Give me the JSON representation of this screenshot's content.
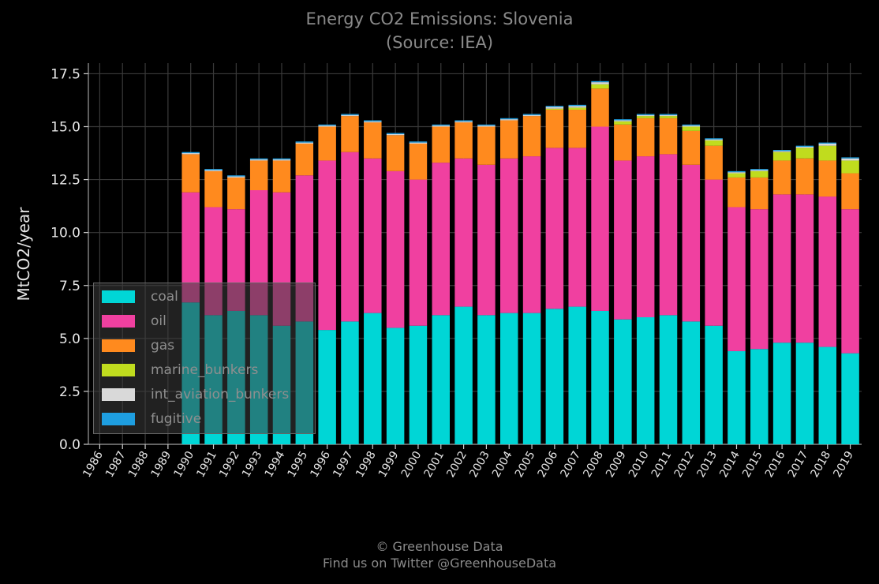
{
  "title_line1": "Energy CO2 Emissions: Slovenia",
  "title_line2": "(Source: IEA)",
  "footer_line1": "© Greenhouse Data",
  "footer_line2": "Find us on Twitter @GreenhouseData",
  "colors": {
    "background": "#000000",
    "grid": "#3a3a3a",
    "coal": "#00d6d6",
    "oil": "#f040a0",
    "gas": "#ff8a1e",
    "marine_bunkers": "#c0dc1e",
    "int_aviation_bunkers": "#d9d9d9",
    "fugitive": "#1e9ee0"
  },
  "chart_data": {
    "type": "bar",
    "stacked": true,
    "title": "Energy CO2 Emissions: Slovenia\n(Source: IEA)",
    "xlabel": "",
    "ylabel": "MtCO2/year",
    "ylim": [
      0,
      18
    ],
    "yticks": [
      "0.0",
      "2.5",
      "5.0",
      "7.5",
      "10.0",
      "12.5",
      "15.0",
      "17.5"
    ],
    "grid": true,
    "legend_position": "lower-left",
    "categories": [
      "1986",
      "1987",
      "1988",
      "1989",
      "1990",
      "1991",
      "1992",
      "1993",
      "1994",
      "1995",
      "1996",
      "1997",
      "1998",
      "1999",
      "2000",
      "2001",
      "2002",
      "2003",
      "2004",
      "2005",
      "2006",
      "2007",
      "2008",
      "2009",
      "2010",
      "2011",
      "2012",
      "2013",
      "2014",
      "2015",
      "2016",
      "2017",
      "2018",
      "2019"
    ],
    "series": [
      {
        "name": "coal",
        "values": [
          0,
          0,
          0,
          0,
          6.7,
          6.1,
          6.3,
          6.1,
          5.6,
          5.8,
          5.4,
          5.8,
          6.2,
          5.5,
          5.6,
          6.1,
          6.5,
          6.1,
          6.2,
          6.2,
          6.4,
          6.5,
          6.3,
          5.9,
          6.0,
          6.1,
          5.8,
          5.6,
          4.4,
          4.5,
          4.8,
          4.8,
          4.6,
          4.3
        ]
      },
      {
        "name": "oil",
        "values": [
          0,
          0,
          0,
          0,
          5.2,
          5.1,
          4.8,
          5.9,
          6.3,
          6.9,
          8.0,
          8.0,
          7.3,
          7.4,
          6.9,
          7.2,
          7.0,
          7.1,
          7.3,
          7.4,
          7.6,
          7.5,
          8.7,
          7.5,
          7.6,
          7.6,
          7.4,
          6.9,
          6.8,
          6.6,
          7.0,
          7.0,
          7.1,
          6.8
        ]
      },
      {
        "name": "gas",
        "values": [
          0,
          0,
          0,
          0,
          1.8,
          1.7,
          1.5,
          1.4,
          1.5,
          1.5,
          1.6,
          1.7,
          1.7,
          1.7,
          1.7,
          1.7,
          1.7,
          1.8,
          1.8,
          1.9,
          1.8,
          1.8,
          1.8,
          1.7,
          1.8,
          1.7,
          1.6,
          1.6,
          1.4,
          1.5,
          1.6,
          1.7,
          1.7,
          1.7
        ]
      },
      {
        "name": "marine_bunkers",
        "values": [
          0,
          0,
          0,
          0,
          0,
          0,
          0,
          0,
          0,
          0,
          0,
          0,
          0,
          0,
          0,
          0,
          0,
          0,
          0,
          0,
          0.05,
          0.1,
          0.2,
          0.15,
          0.1,
          0.1,
          0.2,
          0.25,
          0.2,
          0.3,
          0.4,
          0.5,
          0.7,
          0.6
        ]
      },
      {
        "name": "int_aviation_bunkers",
        "values": [
          0,
          0,
          0,
          0,
          0.05,
          0.05,
          0.05,
          0.05,
          0.05,
          0.05,
          0.05,
          0.05,
          0.05,
          0.05,
          0.05,
          0.05,
          0.05,
          0.05,
          0.05,
          0.05,
          0.08,
          0.08,
          0.1,
          0.05,
          0.05,
          0.05,
          0.05,
          0.05,
          0.05,
          0.05,
          0.05,
          0.05,
          0.1,
          0.1
        ]
      },
      {
        "name": "fugitive",
        "values": [
          0,
          0,
          0,
          0,
          0.05,
          0.05,
          0.05,
          0.05,
          0.05,
          0.05,
          0.05,
          0.05,
          0.05,
          0.05,
          0.05,
          0.05,
          0.05,
          0.05,
          0.05,
          0.05,
          0.05,
          0.05,
          0.05,
          0.05,
          0.05,
          0.05,
          0.05,
          0.05,
          0.05,
          0.05,
          0.05,
          0.05,
          0.05,
          0.05
        ]
      }
    ]
  }
}
